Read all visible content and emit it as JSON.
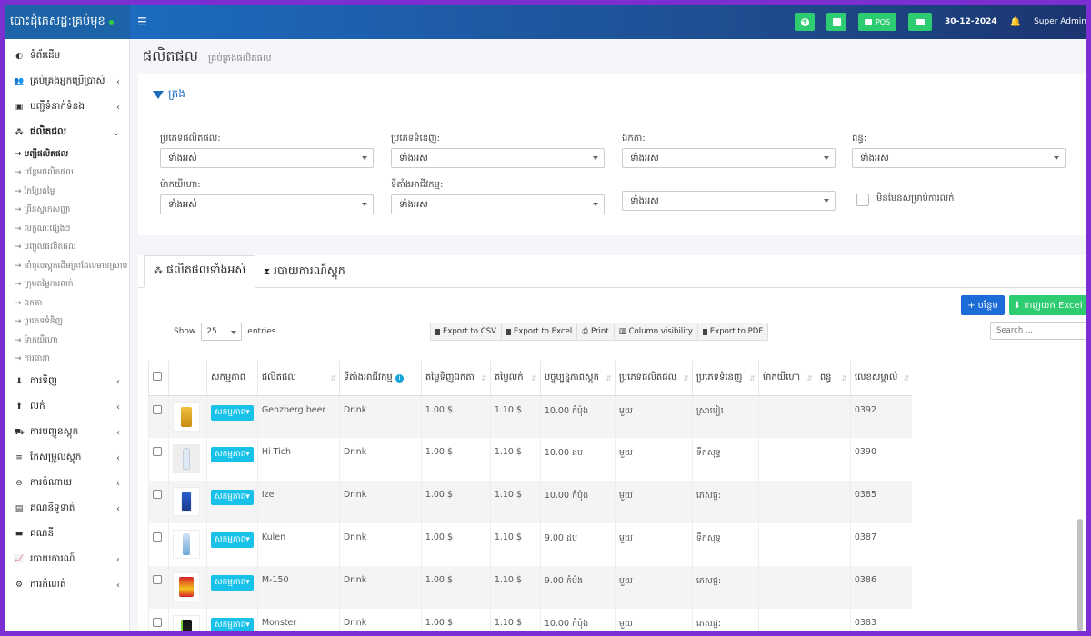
{
  "app": {
    "brand": "បោះដុំគេសដ្ឋ:គ្រប់មុខ"
  },
  "topbar": {
    "pos_label": "POS",
    "date": "30-12-2024",
    "user": "Super Admin"
  },
  "sidebar": {
    "items": [
      {
        "label": "ទំព័រដើម",
        "icon": "dashboard-icon",
        "chevron": false
      },
      {
        "label": "គ្រប់គ្រងអ្នកប្រើប្រាស់",
        "icon": "users-icon",
        "chevron": true
      },
      {
        "label": "បញ្ជីទំនាក់ទំនង",
        "icon": "contact-icon",
        "chevron": true
      },
      {
        "label": "ផលិតផល",
        "icon": "cubes-icon",
        "chevron": true,
        "active": true
      }
    ],
    "sub_items": [
      {
        "label": "→ បញ្ជីផលិតផល",
        "active": true
      },
      {
        "label": "→ បន្ថែមផលិតផល"
      },
      {
        "label": "→ កែប្រែតម្លៃ"
      },
      {
        "label": "→ ព្រីនស្លាកសញ្ញា"
      },
      {
        "label": "→ លក្ខណៈផ្សេងៗ"
      },
      {
        "label": "→ បញ្ចូលផលិតផល"
      },
      {
        "label": "→ នាំចូលស្តុកដើមគ្រាដែលមានស្រាប់"
      },
      {
        "label": "→ ក្រុមតម្លៃការលក់"
      },
      {
        "label": "→ ឯកតា"
      },
      {
        "label": "→ ប្រភេទទំនិញ"
      },
      {
        "label": "→ ម៉ាកយីហោ"
      },
      {
        "label": "→ ការធានា"
      }
    ],
    "lower_items": [
      {
        "label": "ការទិញ",
        "icon": "download-icon",
        "chevron": true
      },
      {
        "label": "លក់",
        "icon": "upload-icon",
        "chevron": true
      },
      {
        "label": "ការបញ្ជូនស្តុក",
        "icon": "truck-icon",
        "chevron": true
      },
      {
        "label": "កែសម្រួលស្តុក",
        "icon": "database-icon",
        "chevron": true
      },
      {
        "label": "ការចំណាយ",
        "icon": "minus-circle-icon",
        "chevron": true
      },
      {
        "label": "គណនីទូទាត់",
        "icon": "card-icon",
        "chevron": true
      },
      {
        "label": "គណនី",
        "icon": "wallet-icon",
        "chevron": false
      },
      {
        "label": "របាយការណ៍",
        "icon": "chart-icon",
        "chevron": true
      },
      {
        "label": "ការកំណត់",
        "icon": "cog-icon",
        "chevron": true
      }
    ]
  },
  "page": {
    "title": "ផលិតផល",
    "subtitle": "គ្រប់គ្រងផលិតផល"
  },
  "filters": {
    "heading": "ត្រង",
    "product_type": {
      "label": "ប្រភេទផលិតផល:",
      "value": "ទាំងអស់"
    },
    "category": {
      "label": "ប្រភេទទំនេញ:",
      "value": "ទាំងអស់"
    },
    "unit": {
      "label": "ឯកតា:",
      "value": "ទាំងអស់"
    },
    "tax": {
      "label": "ពន្ធ:",
      "value": "ទាំងអស់"
    },
    "brand": {
      "label": "ម៉ាកយីហោ:",
      "value": "ទាំងអស់"
    },
    "location": {
      "label": "ទីតាំងអាជីវកម្ម:",
      "value": "ទាំងអស់"
    },
    "status": {
      "value": "ទាំងអស់"
    },
    "not_for_sale_label": "មិនមែនសម្រាប់ការលក់"
  },
  "tabs": [
    {
      "label": "ផលិតផលទាំងអស់"
    },
    {
      "label": "របាយការណ៍ស្តុក"
    }
  ],
  "toolbar": {
    "add_label": "បន្ថែម",
    "download_label": "ទាញយក Excel",
    "show_label": "Show",
    "entries_label": "entries",
    "page_length": "25",
    "export_csv": "Export to CSV",
    "export_excel": "Export to Excel",
    "print": "Print",
    "column_visibility": "Column visibility",
    "export_pdf": "Export to PDF",
    "search_placeholder": "Search ..."
  },
  "table": {
    "headers": [
      "សកម្មភាព",
      "ផលិតផល",
      "ទីតាំងអាជីវកម្ម",
      "តម្លៃទិញឯកតា",
      "តម្លៃលក់",
      "បច្ចុប្បន្នភាពស្តុក",
      "ប្រភេទផលិតផល",
      "ប្រភេទទំនេញ",
      "ម៉ាកយីហោ",
      "ពន្ធ",
      "លេខសម្គាល់"
    ],
    "action_label": "សកម្មភាព",
    "rows": [
      {
        "product": "Genzberg beer",
        "location": "Drink",
        "purchase": "1.00 $",
        "sell": "1.10 $",
        "stock": "10.00 កំប៉ុង",
        "type": "មួយ",
        "category": "ស្រាបៀរ",
        "brand": "",
        "tax": "",
        "sku": "0392",
        "thumb": "can-gold"
      },
      {
        "product": "Hi Tich",
        "location": "Drink",
        "purchase": "1.00 $",
        "sell": "1.10 $",
        "stock": "10.00 ដប",
        "type": "មួយ",
        "category": "ទឹកសុទ្ធ",
        "brand": "",
        "tax": "",
        "sku": "0390",
        "thumb": "bottle-clear"
      },
      {
        "product": "Ize",
        "location": "Drink",
        "purchase": "1.00 $",
        "sell": "1.10 $",
        "stock": "10.00 កំប៉ុង",
        "type": "មួយ",
        "category": "ភេសជ្ជ:",
        "brand": "",
        "tax": "",
        "sku": "0385",
        "thumb": "can-blue"
      },
      {
        "product": "Kulen",
        "location": "Drink",
        "purchase": "1.00 $",
        "sell": "1.10 $",
        "stock": "9.00 ដប",
        "type": "មួយ",
        "category": "ទឹកសុទ្ធ",
        "brand": "",
        "tax": "",
        "sku": "0387",
        "thumb": "bottle-blue"
      },
      {
        "product": "M-150",
        "location": "Drink",
        "purchase": "1.00 $",
        "sell": "1.10 $",
        "stock": "9.00 កំប៉ុង",
        "type": "មួយ",
        "category": "ភេសជ្ជ:",
        "brand": "",
        "tax": "",
        "sku": "0386",
        "thumb": "can-red"
      },
      {
        "product": "Monster",
        "location": "Drink",
        "purchase": "1.00 $",
        "sell": "1.10 $",
        "stock": "10.00 កំប៉ុង",
        "type": "មួយ",
        "category": "ភេសជ្ជ:",
        "brand": "",
        "tax": "",
        "sku": "0383",
        "thumb": "can-black"
      }
    ]
  },
  "colors": {
    "primary": "#1c6bbf",
    "success": "#2ecc71",
    "info": "#17c1e8",
    "frame": "#7b2fd0"
  }
}
